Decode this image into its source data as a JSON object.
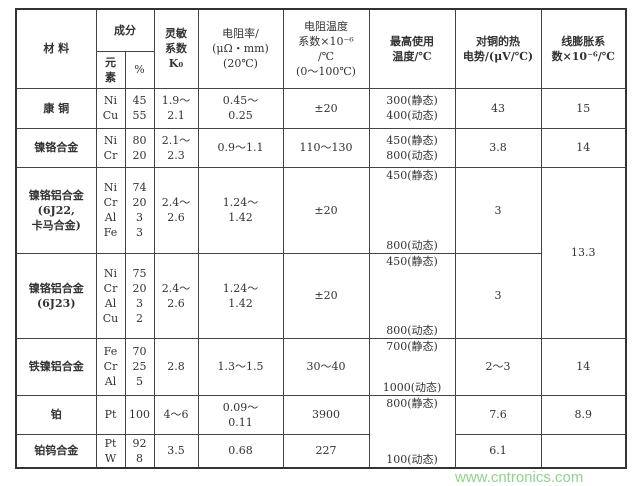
{
  "header": {
    "material": "材 料",
    "composition": "成分",
    "element": "元\n素",
    "percent": "%",
    "sensitivity": "灵敏\n系数\nK₀",
    "resistivity": "电阻率/\n(μΩ・mm)\n(20℃)",
    "temp_coeff": "电阻温度\n系数×10⁻⁶\n/℃\n(0～100℃)",
    "max_temp": "最高使用\n温度/℃",
    "thermo_emf": "对铜的热\n电势/(μV/℃)",
    "expansion": "线膨胀系\n数×10⁻⁶/℃"
  },
  "rows": [
    {
      "material": "康 铜",
      "elements": "Ni\nCu",
      "percents": "45\n55",
      "k0": "1.9～\n2.1",
      "resistivity": "0.45～\n0.25",
      "temp_coeff": "±20",
      "max_temp": "300(静态)\n400(动态)",
      "thermo_emf": "43",
      "expansion": "15"
    },
    {
      "material": "镍铬合金",
      "elements": "Ni\nCr",
      "percents": "80\n20",
      "k0": "2.1～\n2.3",
      "resistivity": "0.9～1.1",
      "temp_coeff": "110～130",
      "max_temp": "450(静态)\n800(动态)",
      "thermo_emf": "3.8",
      "expansion": "14"
    },
    {
      "material": "镍铬铝合金\n(6J22,\n卡马合金)",
      "elements": "Ni\nCr\nAl\nFe",
      "percents": "74\n20\n3\n3",
      "k0": "2.4～\n2.6",
      "resistivity": "1.24～\n1.42",
      "temp_coeff": "±20",
      "max_temp_static": "450(静态)",
      "max_temp_dynamic": "800(动态)",
      "thermo_emf": "3",
      "expansion": "13.3"
    },
    {
      "material": "镍铬铝合金\n(6J23)",
      "elements": "Ni\nCr\nAl\nCu",
      "percents": "75\n20\n3\n2",
      "k0": "2.4～\n2.6",
      "resistivity": "1.24～\n1.42",
      "temp_coeff": "±20",
      "max_temp_static": "450(静态)",
      "max_temp_dynamic": "800(动态)",
      "thermo_emf": "3"
    },
    {
      "material": "铁镍铝合金",
      "elements": "Fe\nCr\nAl",
      "percents": "70\n25\n5",
      "k0": "2.8",
      "resistivity": "1.3～1.5",
      "temp_coeff": "30～40",
      "max_temp_static": "700(静态)",
      "max_temp_dynamic": "1000(动态)",
      "thermo_emf": "2～3",
      "expansion": "14"
    },
    {
      "material": "铂",
      "elements": "Pt",
      "percents": "100",
      "k0": "4～6",
      "resistivity": "0.09～\n0.11",
      "temp_coeff": "3900",
      "max_temp_static": "800(静态)",
      "max_temp_dynamic": "100(动态)",
      "thermo_emf": "7.6",
      "expansion": "8.9"
    },
    {
      "material": "铂钨合金",
      "elements": "Pt\nW",
      "percents": "92\n8",
      "k0": "3.5",
      "resistivity": "0.68",
      "temp_coeff": "227",
      "thermo_emf": "6.1",
      "expansion": ""
    }
  ],
  "watermark": {
    "url": "www.cntronics.com"
  }
}
